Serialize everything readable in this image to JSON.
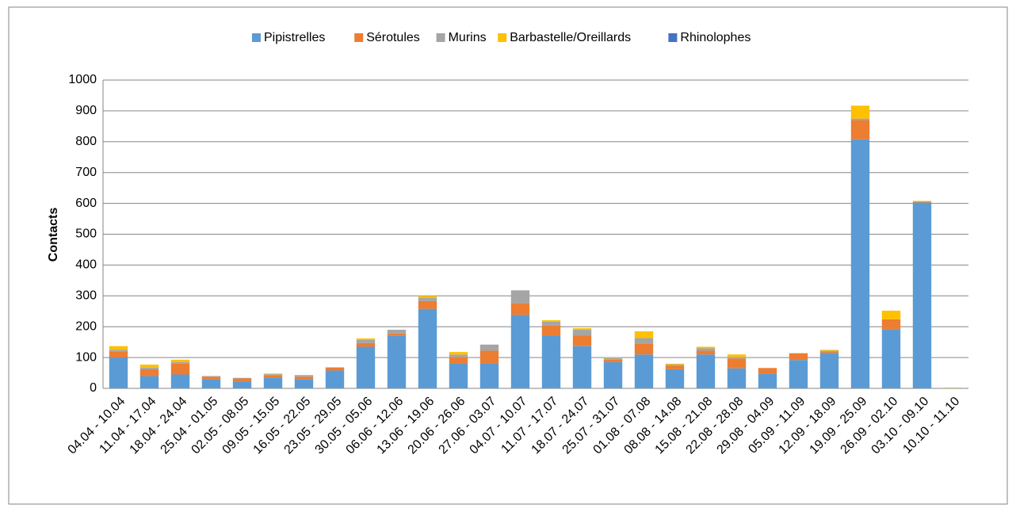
{
  "chart_data": {
    "type": "stacked_bar",
    "y_label": "Contacts",
    "categories": [
      "04.04 - 10.04",
      "11.04 - 17.04",
      "18.04 - 24.04",
      "25.04 - 01.05",
      "02.05 - 08.05",
      "09.05 - 15.05",
      "16.05 - 22.05",
      "23.05 - 29.05",
      "30.05 - 05.06",
      "06.06 - 12.06",
      "13.06 - 19.06",
      "20.06 - 26.06",
      "27.06 - 03.07",
      "04.07 - 10.07",
      "11.07 - 17.07",
      "18.07 - 24.07",
      "25.07 - 31.07",
      "01.08 - 07.08",
      "08.08 - 14.08",
      "15.08 - 21.08",
      "22.08 - 28.08",
      "29.08 - 04.09",
      "05.09 - 11.09",
      "12.09 - 18.09",
      "19.09 - 25.09",
      "26.09 - 02.10",
      "03.10 - 09.10",
      "10.10 - 11.10"
    ],
    "series": [
      {
        "name": "Pipistrelles",
        "color": "#5b9bd5",
        "values": [
          100,
          40,
          45,
          30,
          22,
          35,
          30,
          58,
          135,
          170,
          258,
          82,
          82,
          238,
          172,
          137,
          85,
          110,
          62,
          110,
          65,
          48,
          92,
          115,
          808,
          192,
          603,
          1
        ]
      },
      {
        "name": "Sérotules",
        "color": "#ed7d31",
        "values": [
          20,
          22,
          35,
          8,
          10,
          8,
          8,
          10,
          12,
          8,
          25,
          20,
          40,
          38,
          32,
          35,
          8,
          35,
          10,
          12,
          32,
          18,
          22,
          5,
          62,
          32,
          3,
          0
        ]
      },
      {
        "name": "Murins",
        "color": "#a5a5a5",
        "values": [
          5,
          5,
          5,
          2,
          2,
          3,
          5,
          0,
          10,
          12,
          10,
          8,
          20,
          42,
          12,
          18,
          5,
          18,
          5,
          8,
          5,
          0,
          0,
          2,
          5,
          0,
          0,
          0
        ]
      },
      {
        "name": "Barbastelle/Oreillards",
        "color": "#ffc000",
        "values": [
          12,
          10,
          8,
          0,
          0,
          2,
          0,
          0,
          5,
          0,
          7,
          8,
          0,
          0,
          5,
          5,
          2,
          22,
          3,
          5,
          8,
          0,
          0,
          3,
          42,
          28,
          2,
          1
        ]
      },
      {
        "name": "Rhinolophes",
        "color": "#4472c4",
        "values": [
          0,
          0,
          0,
          0,
          0,
          0,
          0,
          0,
          0,
          0,
          0,
          0,
          0,
          0,
          0,
          0,
          0,
          0,
          0,
          0,
          0,
          0,
          0,
          0,
          0,
          0,
          0,
          0
        ]
      }
    ],
    "ylim": [
      0,
      1000
    ],
    "yticks": [
      0,
      100,
      200,
      300,
      400,
      500,
      600,
      700,
      800,
      900,
      1000
    ],
    "grid": true,
    "legend": "top"
  }
}
